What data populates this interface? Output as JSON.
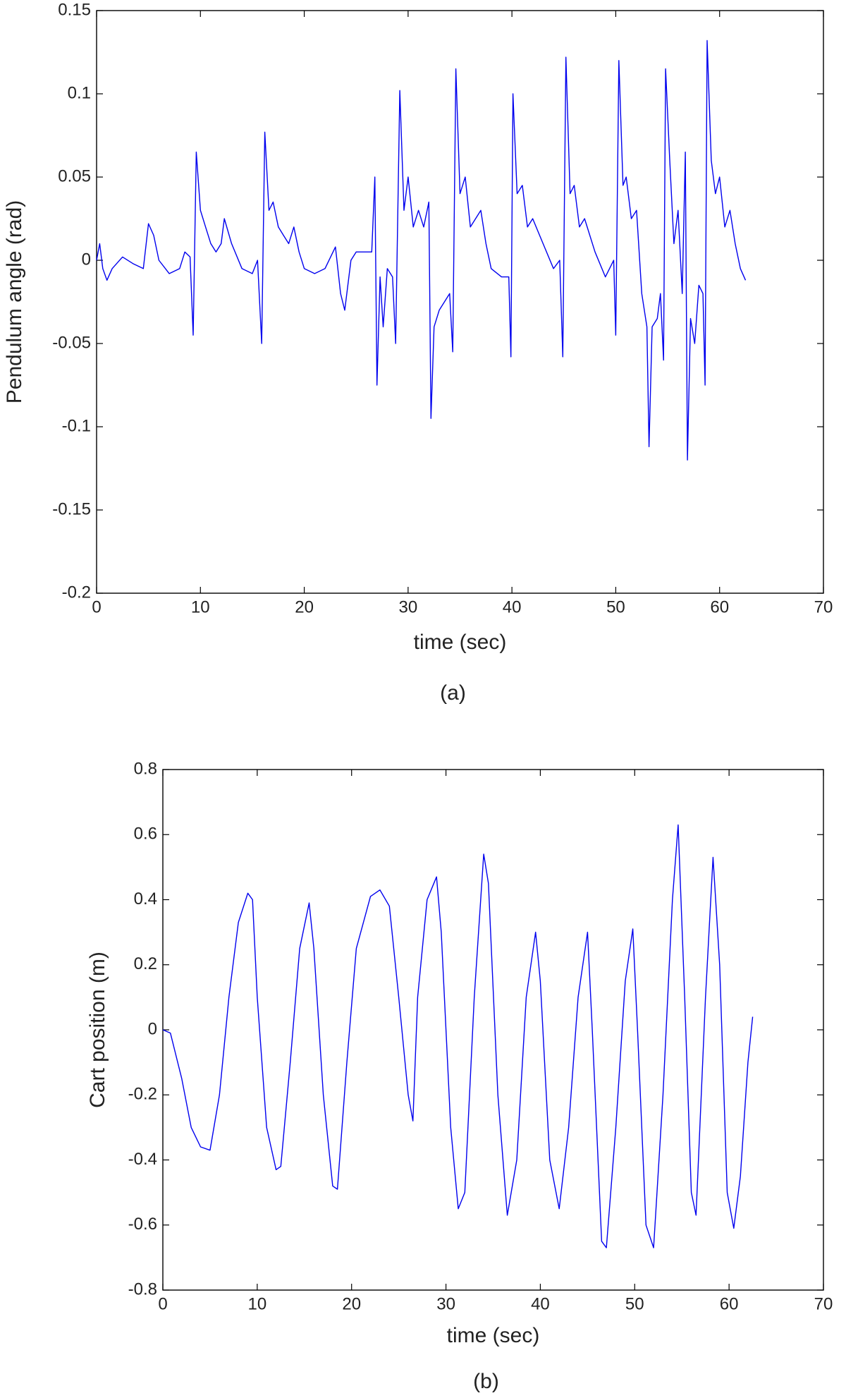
{
  "chart_data": [
    {
      "type": "line",
      "caption": "(a)",
      "xlabel": "time (sec)",
      "ylabel": "Pendulum angle (rad)",
      "xlim": [
        0,
        70
      ],
      "xticks": [
        0,
        10,
        20,
        30,
        40,
        50,
        60,
        70
      ],
      "ylim": [
        -0.2,
        0.15
      ],
      "yticks": [
        -0.2,
        -0.15,
        -0.1,
        -0.05,
        0,
        0.05,
        0.1,
        0.15
      ],
      "grid": false,
      "series": [
        {
          "color": "#0000ee",
          "x": [
            0,
            0.3,
            0.6,
            1,
            1.5,
            2.5,
            3.5,
            4.5,
            5,
            5.5,
            6,
            7,
            8,
            8.5,
            9,
            9.3,
            9.6,
            10,
            10.5,
            11,
            11.5,
            12,
            12.3,
            13,
            14,
            15,
            15.5,
            15.9,
            16.2,
            16.6,
            17,
            17.5,
            18,
            18.5,
            19,
            19.5,
            20,
            21,
            22,
            23,
            23.5,
            23.9,
            24.5,
            25,
            26,
            26.5,
            26.8,
            27,
            27.3,
            27.6,
            28,
            28.5,
            28.8,
            29.2,
            29.6,
            30,
            30.5,
            31,
            31.5,
            32,
            32.2,
            32.5,
            33,
            33.5,
            34,
            34.3,
            34.6,
            35,
            35.5,
            36,
            37,
            37.5,
            38,
            39,
            39.7,
            39.9,
            40.1,
            40.5,
            41,
            41.5,
            42,
            43,
            44,
            44.6,
            44.9,
            45.2,
            45.6,
            46,
            46.5,
            47,
            48,
            49,
            49.8,
            50,
            50.3,
            50.7,
            51,
            51.5,
            52,
            52.5,
            53,
            53.2,
            53.5,
            54,
            54.3,
            54.6,
            54.8,
            55.2,
            55.6,
            56,
            56.4,
            56.7,
            56.9,
            57.2,
            57.6,
            58,
            58.4,
            58.6,
            58.8,
            59.2,
            59.6,
            60,
            60.5,
            61,
            61.5,
            62,
            62.5
          ],
          "values": [
            0,
            0.01,
            -0.005,
            -0.012,
            -0.005,
            0.002,
            -0.002,
            -0.005,
            0.022,
            0.015,
            0,
            -0.008,
            -0.005,
            0.005,
            0.002,
            -0.045,
            0.065,
            0.03,
            0.02,
            0.01,
            0.005,
            0.01,
            0.025,
            0.01,
            -0.005,
            -0.008,
            0,
            -0.05,
            0.077,
            0.03,
            0.035,
            0.02,
            0.015,
            0.01,
            0.02,
            0.005,
            -0.005,
            -0.008,
            -0.005,
            0.008,
            -0.02,
            -0.03,
            0,
            0.005,
            0.005,
            0.005,
            0.05,
            -0.075,
            -0.01,
            -0.04,
            -0.005,
            -0.01,
            -0.05,
            0.102,
            0.03,
            0.05,
            0.02,
            0.03,
            0.02,
            0.035,
            -0.095,
            -0.04,
            -0.03,
            -0.025,
            -0.02,
            -0.055,
            0.115,
            0.04,
            0.05,
            0.02,
            0.03,
            0.01,
            -0.005,
            -0.01,
            -0.01,
            -0.058,
            0.1,
            0.04,
            0.045,
            0.02,
            0.025,
            0.01,
            -0.005,
            0,
            -0.058,
            0.122,
            0.04,
            0.045,
            0.02,
            0.025,
            0.005,
            -0.01,
            0,
            -0.045,
            0.12,
            0.045,
            0.05,
            0.025,
            0.03,
            -0.02,
            -0.04,
            -0.112,
            -0.04,
            -0.035,
            -0.02,
            -0.06,
            0.115,
            0.06,
            0.01,
            0.03,
            -0.02,
            0.065,
            -0.12,
            -0.035,
            -0.05,
            -0.015,
            -0.02,
            -0.075,
            0.132,
            0.06,
            0.04,
            0.05,
            0.02,
            0.03,
            0.01,
            -0.005,
            -0.012
          ]
        }
      ]
    },
    {
      "type": "line",
      "caption": "(b)",
      "xlabel": "time (sec)",
      "ylabel": "Cart position (m)",
      "xlim": [
        0,
        70
      ],
      "xticks": [
        0,
        10,
        20,
        30,
        40,
        50,
        60,
        70
      ],
      "ylim": [
        -0.8,
        0.8
      ],
      "yticks": [
        -0.8,
        -0.6,
        -0.4,
        -0.2,
        0,
        0.2,
        0.4,
        0.6,
        0.8
      ],
      "grid": false,
      "series": [
        {
          "color": "#0000ee",
          "x": [
            0,
            0.8,
            2,
            3,
            4,
            5,
            6,
            7,
            8,
            9,
            9.5,
            10,
            11,
            12,
            12.5,
            13.5,
            14.5,
            15.5,
            16,
            17,
            18,
            18.5,
            19.5,
            20.5,
            22,
            23,
            24,
            25,
            26,
            26.5,
            27,
            28,
            29,
            29.5,
            30.5,
            31.3,
            32,
            33,
            34,
            34.5,
            35.5,
            36.5,
            37.5,
            38.5,
            39.5,
            40,
            41,
            42,
            43,
            44,
            45,
            45.5,
            46.5,
            47,
            48,
            49,
            49.8,
            50.3,
            51.2,
            52,
            53,
            54,
            54.6,
            55.3,
            56,
            56.5,
            57.5,
            58.3,
            59,
            59.8,
            60.5,
            61.2,
            62,
            62.5
          ],
          "values": [
            0,
            -0.01,
            -0.15,
            -0.3,
            -0.36,
            -0.37,
            -0.2,
            0.1,
            0.33,
            0.42,
            0.4,
            0.1,
            -0.3,
            -0.43,
            -0.42,
            -0.1,
            0.25,
            0.39,
            0.25,
            -0.2,
            -0.48,
            -0.49,
            -0.1,
            0.25,
            0.41,
            0.43,
            0.38,
            0.1,
            -0.2,
            -0.28,
            0.1,
            0.4,
            0.47,
            0.3,
            -0.3,
            -0.55,
            -0.5,
            0.1,
            0.54,
            0.45,
            -0.2,
            -0.57,
            -0.4,
            0.1,
            0.3,
            0.15,
            -0.4,
            -0.55,
            -0.3,
            0.1,
            0.3,
            0,
            -0.65,
            -0.67,
            -0.3,
            0.15,
            0.31,
            0,
            -0.6,
            -0.67,
            -0.2,
            0.4,
            0.63,
            0.1,
            -0.5,
            -0.57,
            0.1,
            0.53,
            0.2,
            -0.5,
            -0.61,
            -0.45,
            -0.1,
            0.04
          ]
        }
      ]
    }
  ]
}
